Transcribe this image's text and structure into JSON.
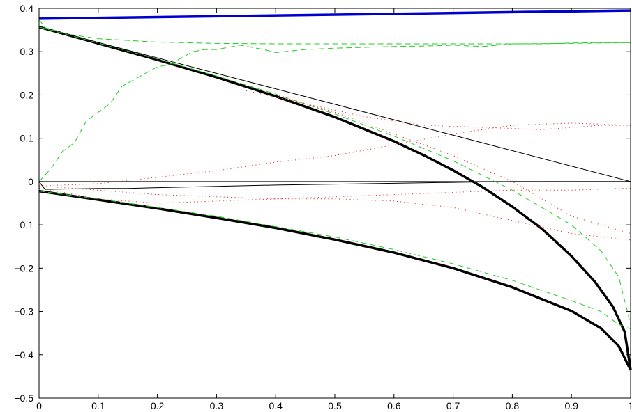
{
  "chart_data": {
    "type": "line",
    "title": "",
    "xlabel": "",
    "ylabel": "",
    "xlim": [
      0,
      1
    ],
    "ylim": [
      -0.5,
      0.4
    ],
    "xticks": [
      "0",
      "0.1",
      "0.2",
      "0.3",
      "0.4",
      "0.5",
      "0.6",
      "0.7",
      "0.8",
      "0.9",
      "1"
    ],
    "yticks": [
      "0.4",
      "0.3",
      "0.2",
      "0.1",
      "0",
      "−0.1",
      "−0.2",
      "−0.3",
      "−0.4",
      "−0.5"
    ],
    "xtick_values": [
      0,
      0.1,
      0.2,
      0.3,
      0.4,
      0.5,
      0.6,
      0.7,
      0.8,
      0.9,
      1
    ],
    "ytick_values": [
      0.4,
      0.3,
      0.2,
      0.1,
      0,
      -0.1,
      -0.2,
      -0.3,
      -0.4,
      -0.5
    ],
    "grid": false,
    "legend": "none",
    "series": [
      {
        "color": "#0000cc",
        "style": "solid",
        "weight": "thick",
        "x": [
          0,
          1
        ],
        "y": [
          0.376,
          0.395
        ]
      },
      {
        "color": "#000000",
        "style": "solid",
        "weight": "thick",
        "x": [
          0,
          0.1,
          0.2,
          0.3,
          0.4,
          0.5,
          0.6,
          0.65,
          0.7,
          0.75,
          0.8,
          0.85,
          0.9,
          0.94,
          0.97,
          0.99,
          1.0
        ],
        "y": [
          0.357,
          0.319,
          0.281,
          0.241,
          0.197,
          0.149,
          0.093,
          0.061,
          0.026,
          -0.013,
          -0.058,
          -0.109,
          -0.172,
          -0.232,
          -0.289,
          -0.347,
          -0.435
        ]
      },
      {
        "color": "#000000",
        "style": "solid",
        "weight": "thick",
        "x": [
          0,
          0.05,
          0.1,
          0.2,
          0.3,
          0.4,
          0.5,
          0.6,
          0.7,
          0.8,
          0.9,
          0.95,
          0.98,
          1.0
        ],
        "y": [
          -0.022,
          -0.032,
          -0.042,
          -0.062,
          -0.084,
          -0.107,
          -0.134,
          -0.164,
          -0.2,
          -0.244,
          -0.299,
          -0.339,
          -0.38,
          -0.435
        ]
      },
      {
        "color": "#000000",
        "style": "solid",
        "weight": "thin",
        "x": [
          0,
          1
        ],
        "y": [
          0.357,
          0.0
        ]
      },
      {
        "color": "#000000",
        "style": "solid",
        "weight": "thin",
        "x": [
          0,
          1
        ],
        "y": [
          0.0,
          0.0
        ]
      },
      {
        "color": "#000000",
        "style": "solid",
        "weight": "thin",
        "x": [
          0,
          0.01,
          0.05,
          0.1,
          0.15,
          0.2,
          0.3,
          0.4,
          0.5,
          0.6,
          0.7,
          0.8,
          0.9,
          1.0
        ],
        "y": [
          0.0,
          -0.018,
          -0.017,
          -0.016,
          -0.016,
          -0.014,
          -0.011,
          -0.008,
          -0.006,
          -0.004,
          -0.002,
          0.0,
          0.0,
          0.0
        ]
      },
      {
        "color": "#22cc22",
        "style": "dashed",
        "weight": "thin",
        "x": [
          0,
          0.01,
          0.05,
          0.1,
          0.2,
          0.3,
          0.4,
          0.5,
          0.6,
          0.7,
          0.8,
          0.9,
          1.0
        ],
        "y": [
          0.375,
          0.355,
          0.34,
          0.33,
          0.322,
          0.319,
          0.318,
          0.318,
          0.318,
          0.318,
          0.318,
          0.319,
          0.321
        ]
      },
      {
        "color": "#22cc22",
        "style": "dashed",
        "weight": "thin",
        "x": [
          0,
          0.02,
          0.04,
          0.06,
          0.08,
          0.1,
          0.12,
          0.14,
          0.16,
          0.18,
          0.2,
          0.22,
          0.24,
          0.26,
          0.28,
          0.3,
          0.32,
          0.34,
          0.36,
          0.38,
          0.4,
          0.45,
          0.5,
          0.55,
          0.6,
          0.65,
          0.7,
          0.75,
          0.8,
          0.85,
          0.9,
          0.95,
          1.0
        ],
        "y": [
          0.0,
          0.03,
          0.07,
          0.09,
          0.14,
          0.16,
          0.18,
          0.22,
          0.235,
          0.25,
          0.265,
          0.27,
          0.285,
          0.3,
          0.305,
          0.305,
          0.31,
          0.315,
          0.31,
          0.305,
          0.298,
          0.305,
          0.308,
          0.31,
          0.312,
          0.313,
          0.315,
          0.312,
          0.318,
          0.318,
          0.32,
          0.321,
          0.321
        ]
      },
      {
        "color": "#22cc22",
        "style": "dashed",
        "weight": "thin",
        "x": [
          0,
          0.1,
          0.2,
          0.3,
          0.4,
          0.5,
          0.6,
          0.7,
          0.8,
          0.9,
          0.95,
          0.98,
          1.0
        ],
        "y": [
          0.357,
          0.32,
          0.283,
          0.244,
          0.202,
          0.156,
          0.105,
          0.048,
          -0.02,
          -0.1,
          -0.16,
          -0.22,
          -0.33
        ]
      },
      {
        "color": "#22cc22",
        "style": "dashed",
        "weight": "thin",
        "x": [
          0,
          0.1,
          0.2,
          0.3,
          0.4,
          0.5,
          0.6,
          0.7,
          0.8,
          0.9,
          0.95,
          0.98,
          1.0
        ],
        "y": [
          -0.022,
          -0.04,
          -0.06,
          -0.08,
          -0.104,
          -0.128,
          -0.157,
          -0.19,
          -0.228,
          -0.275,
          -0.3,
          -0.33,
          -0.34
        ]
      },
      {
        "color": "#dd3333",
        "style": "dotted",
        "weight": "thin",
        "x": [
          0.35,
          0.45,
          0.55,
          0.65,
          0.75,
          0.85,
          0.95,
          1.0
        ],
        "y": [
          0.21,
          0.18,
          0.15,
          0.13,
          0.125,
          0.12,
          0.13,
          0.13
        ]
      },
      {
        "color": "#dd3333",
        "style": "dotted",
        "weight": "thin",
        "x": [
          0.4,
          0.5,
          0.6,
          0.7,
          0.8,
          0.9,
          1.0
        ],
        "y": [
          0.2,
          0.16,
          0.11,
          0.06,
          0.0,
          -0.08,
          -0.12
        ]
      },
      {
        "color": "#dd3333",
        "style": "dotted",
        "weight": "thin",
        "x": [
          0.0,
          0.1,
          0.2,
          0.3,
          0.4,
          0.5,
          0.6,
          0.7,
          0.8,
          0.9,
          1.0
        ],
        "y": [
          -0.01,
          -0.005,
          0.01,
          0.025,
          0.045,
          0.06,
          0.085,
          0.11,
          0.13,
          0.135,
          0.13
        ]
      },
      {
        "color": "#dd3333",
        "style": "dotted",
        "weight": "thin",
        "x": [
          0.0,
          0.1,
          0.2,
          0.3,
          0.4,
          0.5,
          0.6,
          0.7,
          0.8,
          0.9,
          1.0
        ],
        "y": [
          -0.015,
          -0.04,
          -0.05,
          -0.045,
          -0.04,
          -0.04,
          -0.045,
          -0.06,
          -0.09,
          -0.12,
          -0.135
        ]
      },
      {
        "color": "#dd3333",
        "style": "dotted",
        "weight": "thin",
        "x": [
          0.0,
          0.1,
          0.2,
          0.3,
          0.4,
          0.5,
          0.6,
          0.7,
          0.8,
          0.9,
          1.0
        ],
        "y": [
          -0.01,
          -0.02,
          -0.03,
          -0.035,
          -0.04,
          -0.035,
          -0.03,
          -0.025,
          -0.02,
          -0.02,
          -0.015
        ]
      }
    ]
  }
}
